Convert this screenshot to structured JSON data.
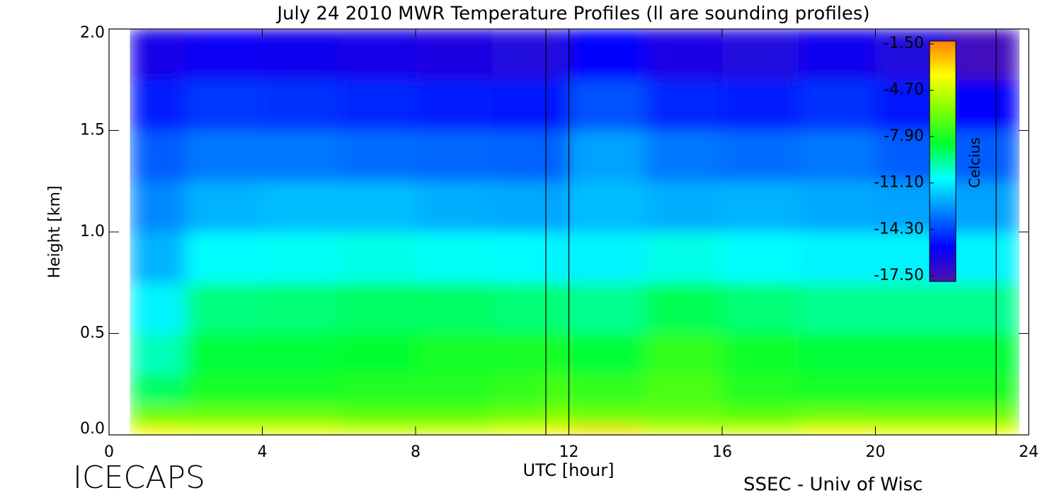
{
  "chart_data": {
    "type": "heatmap",
    "title": "July 24 2010 MWR Temperature Profiles (ll are sounding profiles)",
    "xlabel": "UTC [hour]",
    "ylabel": "Height [km]",
    "colorbar_label": "Celcius",
    "footer_left": "ICECAPS",
    "footer_right": "SSEC - Univ of Wisc",
    "xlim": [
      0,
      24
    ],
    "xticks": [
      0,
      4,
      8,
      12,
      16,
      20,
      24
    ],
    "ylim": [
      0,
      2
    ],
    "yticks": [
      {
        "value": 0,
        "label": "0.0"
      },
      {
        "value": 0.5,
        "label": "0.5"
      },
      {
        "value": 1,
        "label": "1.0"
      },
      {
        "value": 1.5,
        "label": "1.5"
      },
      {
        "value": 2,
        "label": "2.0"
      }
    ],
    "zlim": [
      -17.9,
      -1.3
    ],
    "zticks": [
      {
        "value": -17.5,
        "label": "-17.50"
      },
      {
        "value": -14.3,
        "label": "-14.30"
      },
      {
        "value": -11.1,
        "label": "-11.10"
      },
      {
        "value": -7.9,
        "label": "-7.90"
      },
      {
        "value": -4.7,
        "label": "-4.70"
      },
      {
        "value": -1.5,
        "label": "-1.50"
      }
    ],
    "colormap": [
      "#5010b0",
      "#0000ff",
      "#0080ff",
      "#00ffff",
      "#00ff30",
      "#80ff00",
      "#ffff00",
      "#ff8000"
    ],
    "xbins": [
      0.55,
      2,
      4,
      6,
      8,
      10,
      11.4,
      12,
      14,
      16,
      18,
      20,
      22,
      23.75
    ],
    "ybins": [
      0,
      0.05,
      0.15,
      0.3,
      0.5,
      0.75,
      1.0,
      1.25,
      1.5,
      1.75,
      2.0
    ],
    "z": [
      [
        -3.5,
        -4,
        -4,
        -4.5,
        -4.5,
        -4,
        -3.5,
        -3,
        -4.5,
        -4.5,
        -3.5,
        -4,
        -4
      ],
      [
        -6.5,
        -6.5,
        -6.5,
        -6.8,
        -6.8,
        -6.5,
        -6,
        -6.5,
        -6.5,
        -6.8,
        -6.5,
        -6.5,
        -6.5
      ],
      [
        -9,
        -8,
        -8,
        -7.8,
        -7.8,
        -7.5,
        -7,
        -7.5,
        -7,
        -7.8,
        -8,
        -8,
        -8
      ],
      [
        -10,
        -8.5,
        -8.5,
        -8.3,
        -8,
        -8,
        -8,
        -8.5,
        -7.5,
        -8.2,
        -8.5,
        -8.5,
        -8.5
      ],
      [
        -11,
        -9.3,
        -9.2,
        -9,
        -9,
        -9.2,
        -9.2,
        -9.5,
        -8.8,
        -9.2,
        -9.5,
        -9.5,
        -9.5
      ],
      [
        -12.2,
        -10.8,
        -10.7,
        -10.5,
        -10.7,
        -10.8,
        -11,
        -11,
        -10.5,
        -10.8,
        -11,
        -11,
        -11
      ],
      [
        -13,
        -12.2,
        -12,
        -12,
        -12.3,
        -12.4,
        -12.5,
        -12,
        -12.3,
        -12.2,
        -12.4,
        -12.5,
        -12.5
      ],
      [
        -13.8,
        -13.3,
        -13.3,
        -13.5,
        -13.6,
        -13.7,
        -13.8,
        -12.5,
        -13.3,
        -13.5,
        -13.3,
        -13.8,
        -13.8
      ],
      [
        -15,
        -14.5,
        -14.6,
        -14.8,
        -15,
        -15.2,
        -15.3,
        -14,
        -14.8,
        -15,
        -14.6,
        -15.2,
        -15.5
      ],
      [
        -16.2,
        -15.8,
        -16,
        -16.2,
        -16.4,
        -16.5,
        -16.6,
        -15.5,
        -16.3,
        -16.5,
        -16,
        -16.5,
        -17.5
      ]
    ],
    "soundings": [
      11.4,
      12.0,
      23.15
    ]
  }
}
